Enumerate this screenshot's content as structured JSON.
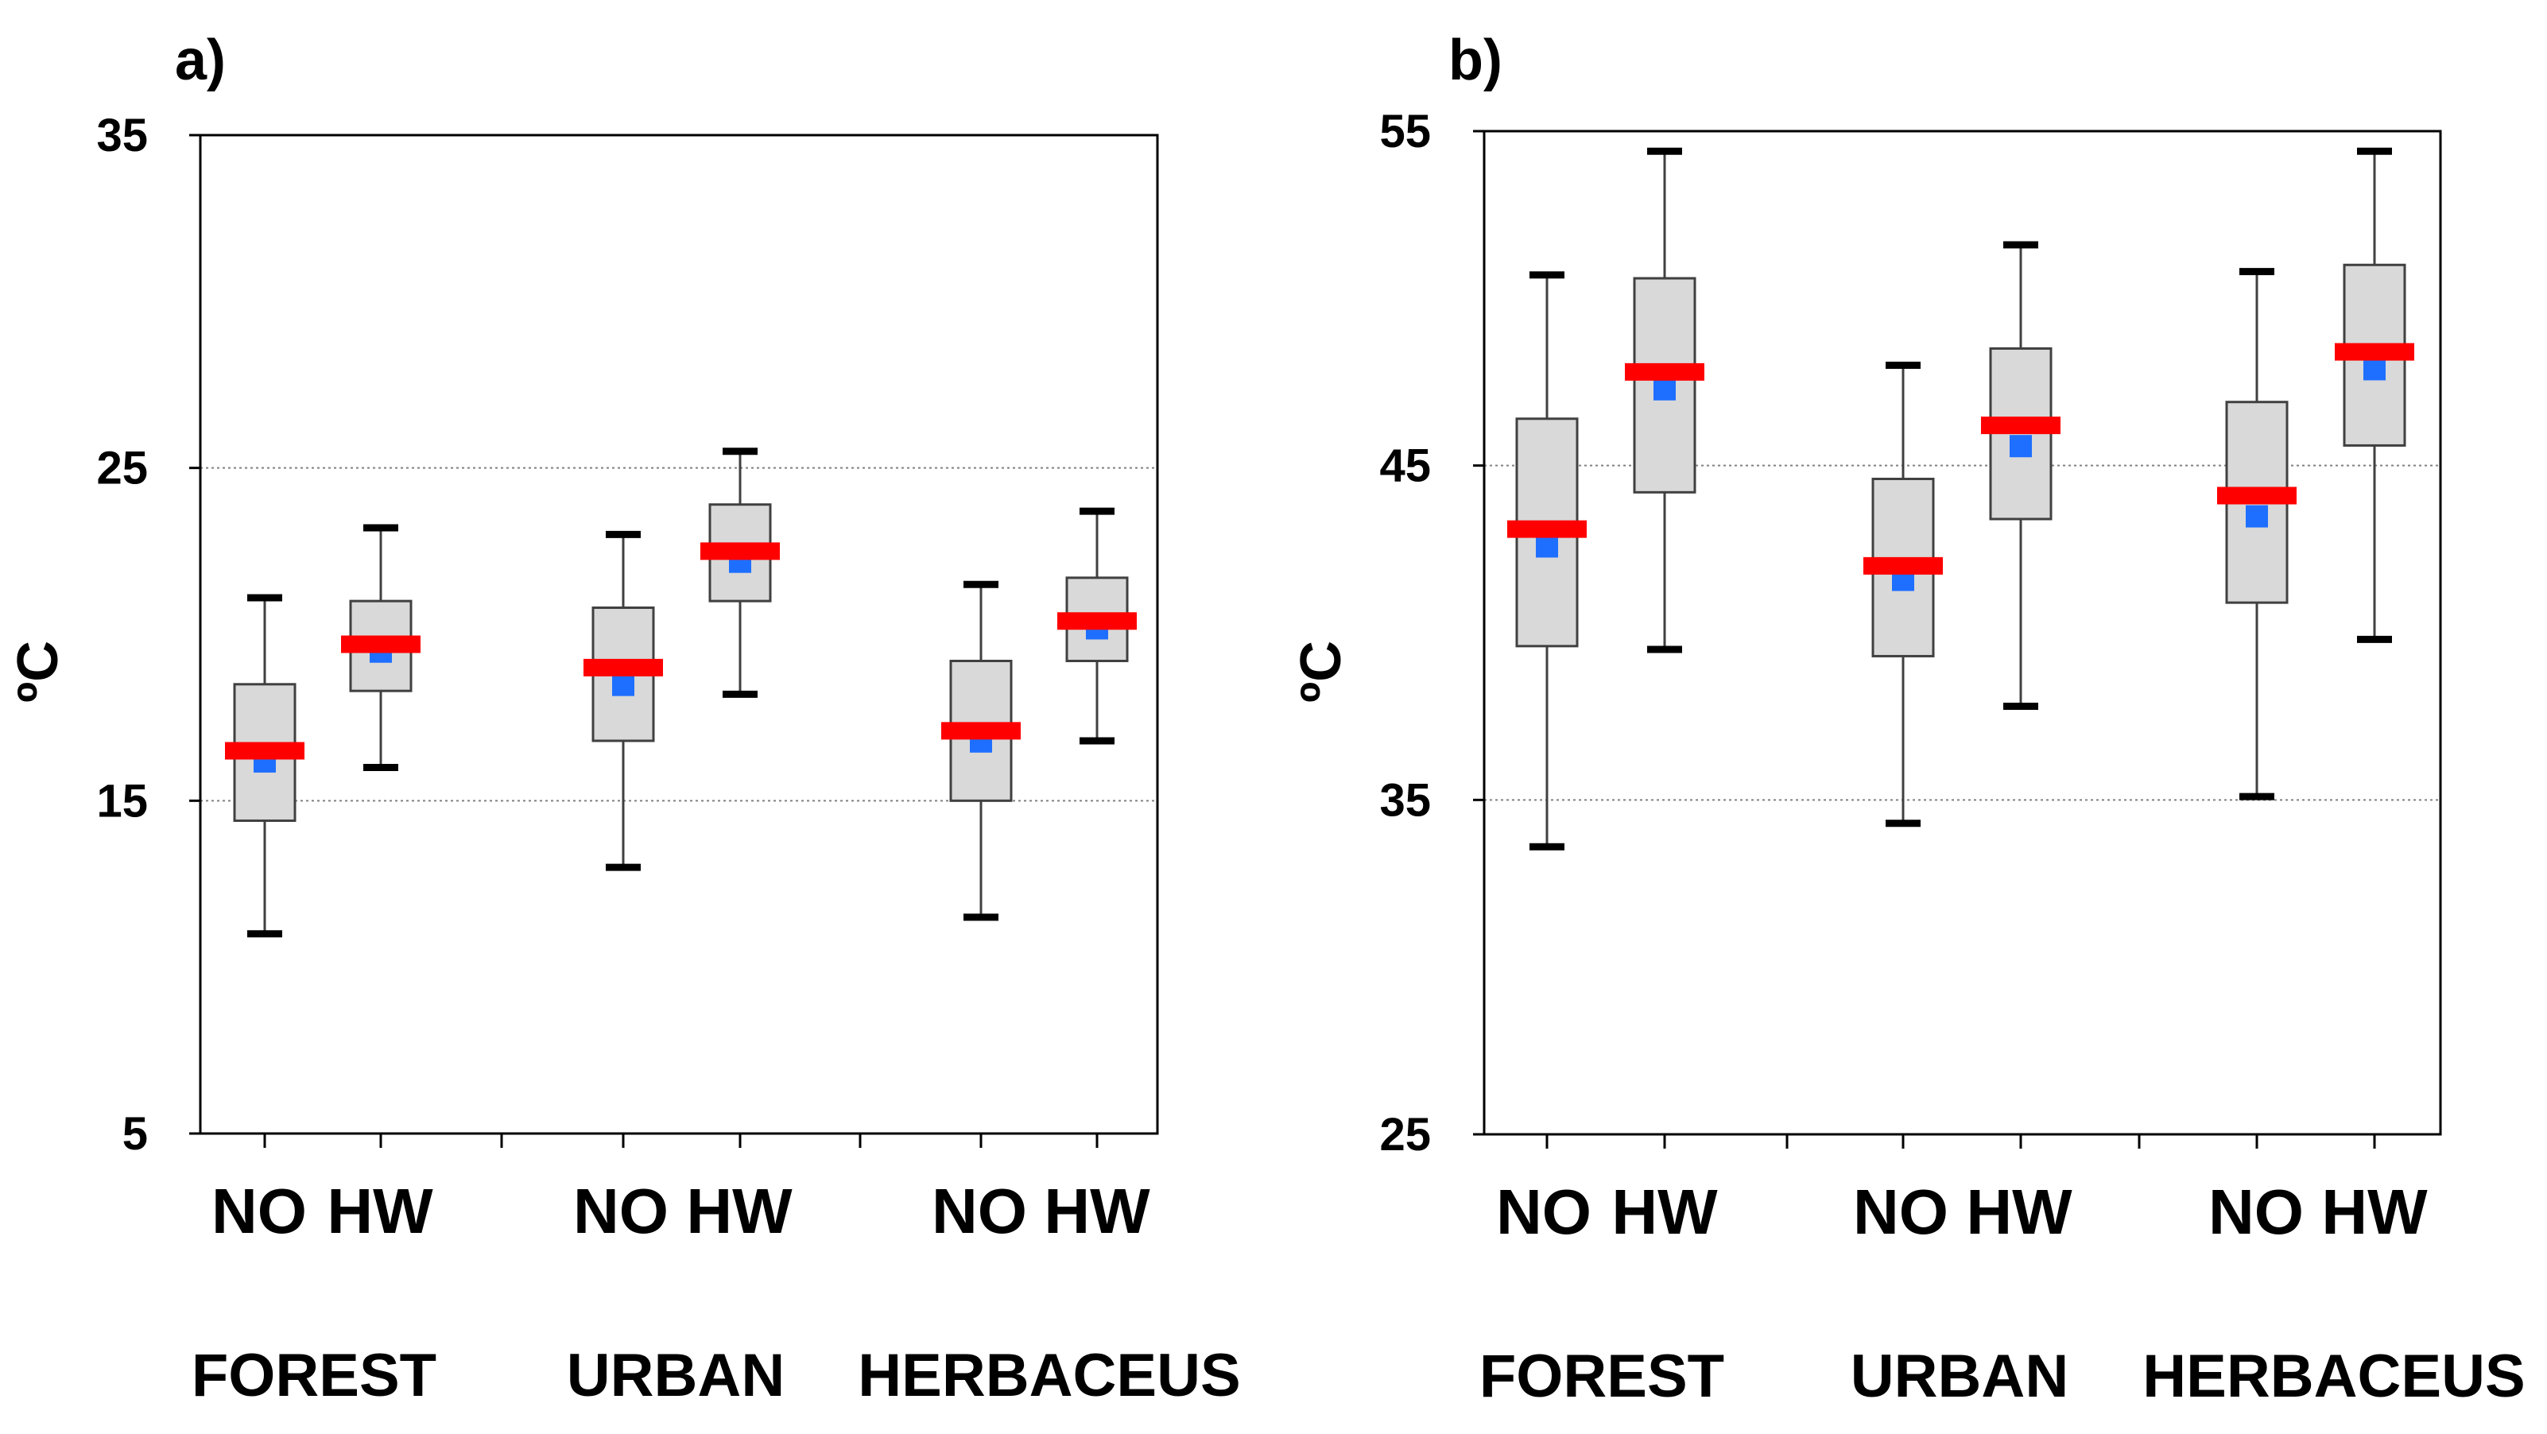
{
  "figure": {
    "group_labels": [
      "NO",
      "HW"
    ],
    "colors": {
      "box_fill": "#d9d9d9",
      "box_stroke": "#404040",
      "median": "#ff0000",
      "mean": "#1e6fff",
      "grid": "#808080",
      "axis": "#000000"
    }
  },
  "chart_data": [
    {
      "type": "boxplot",
      "panel_label": "a)",
      "ylabel": "ºC",
      "ylim": [
        5,
        35
      ],
      "yticks": [
        5,
        15,
        25,
        35
      ],
      "gridlines": [
        15,
        25
      ],
      "categories": [
        "FOREST",
        "URBAN",
        "HERBACEUS"
      ],
      "series": [
        {
          "category": "FOREST",
          "group": "NO",
          "whisker_low": 11.0,
          "q1": 14.4,
          "median": 16.5,
          "mean": 16.3,
          "q3": 18.5,
          "whisker_high": 21.1
        },
        {
          "category": "FOREST",
          "group": "HW",
          "whisker_low": 16.0,
          "q1": 18.3,
          "median": 19.7,
          "mean": 19.6,
          "q3": 21.0,
          "whisker_high": 23.2
        },
        {
          "category": "URBAN",
          "group": "NO",
          "whisker_low": 13.0,
          "q1": 16.8,
          "median": 19.0,
          "mean": 18.6,
          "q3": 20.8,
          "whisker_high": 23.0
        },
        {
          "category": "URBAN",
          "group": "HW",
          "whisker_low": 18.2,
          "q1": 21.0,
          "median": 22.5,
          "mean": 22.3,
          "q3": 23.9,
          "whisker_high": 25.5
        },
        {
          "category": "HERBACEUS",
          "group": "NO",
          "whisker_low": 11.5,
          "q1": 15.0,
          "median": 17.1,
          "mean": 16.9,
          "q3": 19.2,
          "whisker_high": 21.5
        },
        {
          "category": "HERBACEUS",
          "group": "HW",
          "whisker_low": 16.8,
          "q1": 19.2,
          "median": 20.4,
          "mean": 20.3,
          "q3": 21.7,
          "whisker_high": 23.7
        }
      ]
    },
    {
      "type": "boxplot",
      "panel_label": "b)",
      "ylabel": "ºC",
      "ylim": [
        25,
        55
      ],
      "yticks": [
        25,
        35,
        45,
        55
      ],
      "gridlines": [
        35,
        45
      ],
      "categories": [
        "FOREST",
        "URBAN",
        "HERBACEUS"
      ],
      "series": [
        {
          "category": "FOREST",
          "group": "NO",
          "whisker_low": 33.6,
          "q1": 39.6,
          "median": 43.1,
          "mean": 42.7,
          "q3": 46.4,
          "whisker_high": 50.7
        },
        {
          "category": "FOREST",
          "group": "HW",
          "whisker_low": 39.5,
          "q1": 44.2,
          "median": 47.8,
          "mean": 47.4,
          "q3": 50.6,
          "whisker_high": 54.4
        },
        {
          "category": "URBAN",
          "group": "NO",
          "whisker_low": 34.3,
          "q1": 39.3,
          "median": 42.0,
          "mean": 41.7,
          "q3": 44.6,
          "whisker_high": 48.0
        },
        {
          "category": "URBAN",
          "group": "HW",
          "whisker_low": 37.8,
          "q1": 43.4,
          "median": 46.2,
          "mean": 45.7,
          "q3": 48.5,
          "whisker_high": 51.6
        },
        {
          "category": "HERBACEUS",
          "group": "NO",
          "whisker_low": 35.1,
          "q1": 40.9,
          "median": 44.1,
          "mean": 43.6,
          "q3": 46.9,
          "whisker_high": 50.8
        },
        {
          "category": "HERBACEUS",
          "group": "HW",
          "whisker_low": 39.8,
          "q1": 45.6,
          "median": 48.4,
          "mean": 48.0,
          "q3": 51.0,
          "whisker_high": 54.4
        }
      ]
    }
  ]
}
